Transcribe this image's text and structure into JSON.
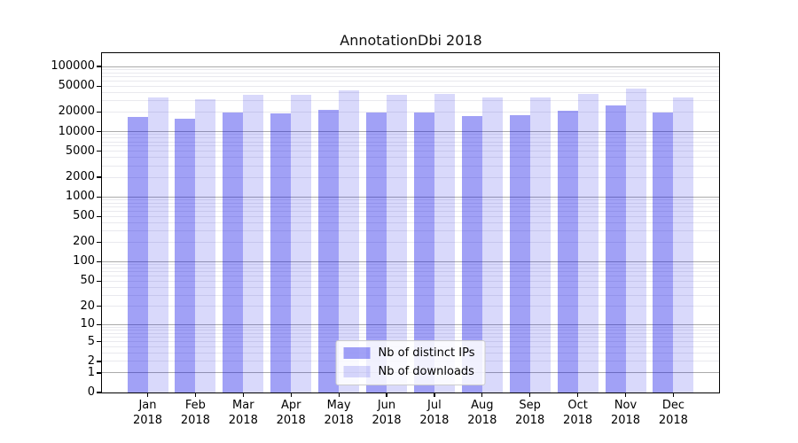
{
  "chart_data": {
    "type": "bar",
    "title": "AnnotationDbi 2018",
    "categories": [
      "Jan",
      "Feb",
      "Mar",
      "Apr",
      "May",
      "Jun",
      "Jul",
      "Aug",
      "Sep",
      "Oct",
      "Nov",
      "Dec"
    ],
    "year_label": "2018",
    "series": [
      {
        "name": "Nb of distinct IPs",
        "color": "rgba(0,0,230,0.37)",
        "values": [
          17000,
          16000,
          19500,
          19000,
          21500,
          19500,
          19500,
          17500,
          18000,
          21000,
          25500,
          19500
        ]
      },
      {
        "name": "Nb of downloads",
        "color": "rgba(0,0,230,0.15)",
        "values": [
          34000,
          31000,
          37000,
          37000,
          43500,
          36500,
          38500,
          33000,
          34000,
          38500,
          46500,
          33000
        ]
      }
    ],
    "yscale": "log10(1+y)",
    "ylim": [
      0,
      160000
    ],
    "yticks": [
      100000,
      50000,
      20000,
      10000,
      5000,
      2000,
      1000,
      500,
      200,
      100,
      50,
      20,
      10,
      5,
      2,
      1,
      0
    ],
    "xlabel": "",
    "ylabel": "",
    "grid": "horizontal major + minor",
    "legend_position": "lower center"
  },
  "colors": {
    "bar_distinct_ips": "rgba(0,0,230,0.37)",
    "bar_downloads": "rgba(0,0,230,0.15)",
    "grid_major": "#ababab",
    "grid_minor": "#e9e9ee",
    "axis": "#000000",
    "background": "#ffffff"
  }
}
